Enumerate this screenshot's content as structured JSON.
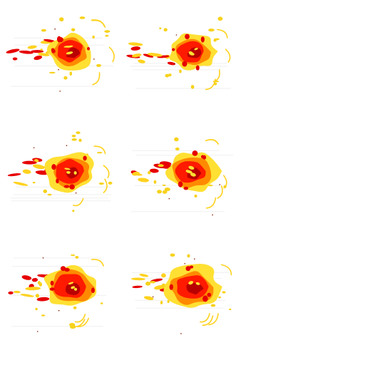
{
  "sheet": {
    "kind": "explosion-sprite-sheet",
    "columns": 2,
    "rows": 3,
    "background": "#ffffff"
  },
  "palette": {
    "outer_flame": "#ffe033",
    "outer_flame_shade": "#f7d21c",
    "mid_flame": "#ff8a00",
    "core": "#ff1a00",
    "core_dark": "#b80000",
    "ember": "#e60000",
    "spark": "#ffd21f",
    "smoke": "#e9e9e9"
  },
  "frames": [
    {
      "id": "frame-1",
      "seed": 11,
      "spread": 1.0
    },
    {
      "id": "frame-2",
      "seed": 23,
      "spread": 1.05
    },
    {
      "id": "frame-3",
      "seed": 37,
      "spread": 1.1
    },
    {
      "id": "frame-4",
      "seed": 41,
      "spread": 1.12
    },
    {
      "id": "frame-5",
      "seed": 53,
      "spread": 1.18
    },
    {
      "id": "frame-6",
      "seed": 67,
      "spread": 1.2
    }
  ]
}
